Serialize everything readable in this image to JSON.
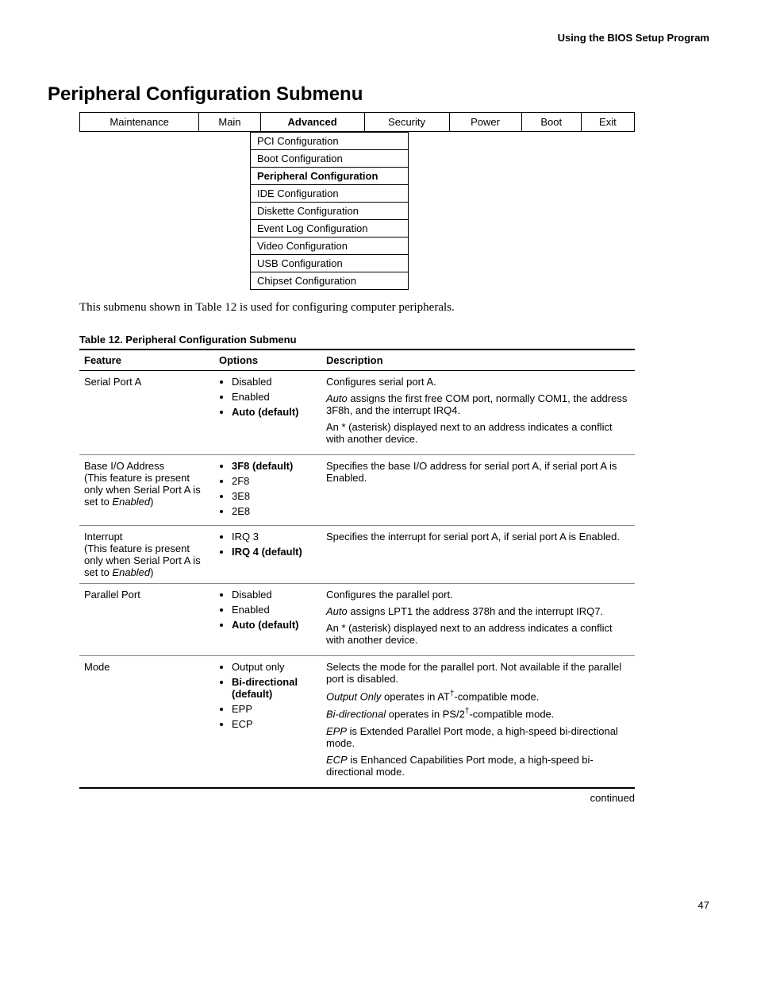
{
  "header": {
    "section": "Using the BIOS Setup Program"
  },
  "title": "Peripheral Configuration Submenu",
  "menubar": {
    "items": [
      "Maintenance",
      "Main",
      "Advanced",
      "Security",
      "Power",
      "Boot",
      "Exit"
    ],
    "active_index": 2
  },
  "submenu": {
    "items": [
      "PCI Configuration",
      "Boot Configuration",
      "Peripheral Configuration",
      "IDE Configuration",
      "Diskette Configuration",
      "Event Log Configuration",
      "Video Configuration",
      "USB Configuration",
      "Chipset Configuration"
    ],
    "active_index": 2
  },
  "intro_text": "This submenu shown in Table 12 is used for configuring computer peripherals.",
  "table_caption": "Table 12.    Peripheral Configuration Submenu",
  "table": {
    "headers": [
      "Feature",
      "Options",
      "Description"
    ],
    "rows": [
      {
        "feature": "Serial Port A",
        "feature_note": "",
        "options": [
          {
            "text": "Disabled",
            "bold": false
          },
          {
            "text": "Enabled",
            "bold": false
          },
          {
            "text": "Auto (default)",
            "bold": true
          }
        ],
        "description": [
          {
            "plain": "Configures serial port A."
          },
          {
            "italic_lead": "Auto",
            "rest": " assigns the first free COM port, normally COM1, the address 3F8h, and the interrupt IRQ4."
          },
          {
            "plain": "An * (asterisk) displayed next to an address indicates a conflict with another device."
          }
        ]
      },
      {
        "feature": "Base I/O Address",
        "feature_note": "(This feature is present only when Serial Port A is set to ",
        "feature_note_ital": "Enabled",
        "feature_note_tail": ")",
        "options": [
          {
            "text": "3F8 (default)",
            "bold": true
          },
          {
            "text": "2F8",
            "bold": false
          },
          {
            "text": "3E8",
            "bold": false
          },
          {
            "text": "2E8",
            "bold": false
          }
        ],
        "description": [
          {
            "plain": "Specifies the base I/O address for serial port A, if serial port A is Enabled."
          }
        ]
      },
      {
        "feature": "Interrupt",
        "feature_note": "(This feature is present only when Serial Port A is set to ",
        "feature_note_ital": "Enabled",
        "feature_note_tail": ")",
        "options": [
          {
            "text": "IRQ 3",
            "bold": false
          },
          {
            "text": "IRQ 4 (default)",
            "bold": true
          }
        ],
        "description": [
          {
            "plain": "Specifies the interrupt for serial port A, if serial port A is Enabled."
          }
        ]
      },
      {
        "feature": "Parallel Port",
        "feature_note": "",
        "options": [
          {
            "text": "Disabled",
            "bold": false
          },
          {
            "text": "Enabled",
            "bold": false
          },
          {
            "text": "Auto (default)",
            "bold": true
          }
        ],
        "description": [
          {
            "plain": "Configures the parallel port."
          },
          {
            "italic_lead": "Auto",
            "rest": " assigns LPT1 the address 378h and the interrupt IRQ7."
          },
          {
            "plain": "An * (asterisk) displayed next to an address indicates a conflict with another device."
          }
        ]
      },
      {
        "feature": "Mode",
        "feature_note": "",
        "options": [
          {
            "text": "Output only",
            "bold": false
          },
          {
            "text": "Bi-directional (default)",
            "bold": true
          },
          {
            "text": "EPP",
            "bold": false
          },
          {
            "text": "ECP",
            "bold": false
          }
        ],
        "description": [
          {
            "plain": "Selects the mode for the parallel port.  Not available if the parallel port is disabled."
          },
          {
            "italic_lead": "Output Only",
            "rest": " operates in AT",
            "sup": "†",
            "rest2": "-compatible mode."
          },
          {
            "italic_lead": "Bi-directional",
            "rest": " operates in PS/2",
            "sup": "†",
            "rest2": "-compatible mode."
          },
          {
            "italic_lead": "EPP",
            "rest": " is Extended Parallel Port mode, a high-speed bi-directional mode."
          },
          {
            "italic_lead": "ECP",
            "rest": " is Enhanced Capabilities Port mode, a high-speed bi-directional mode."
          }
        ]
      }
    ]
  },
  "continued": "continued",
  "page_number": "47",
  "colors": {
    "text": "#000000",
    "background": "#ffffff",
    "border": "#000000",
    "row_divider": "#888888"
  }
}
